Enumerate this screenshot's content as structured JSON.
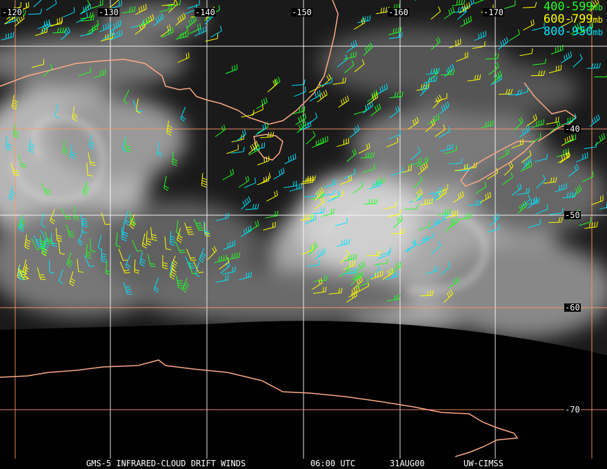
{
  "legend": [
    {
      "label": "400-599",
      "unit": "mb",
      "color": "#22ff22"
    },
    {
      "label": "600-799",
      "unit": "mb",
      "color": "#ffff00"
    },
    {
      "label": "800-950",
      "unit": "mb",
      "color": "#00e5ff"
    }
  ],
  "longitude_labels": [
    "-120",
    "-130",
    "-140",
    "-150",
    "-160",
    "-170"
  ],
  "latitude_labels": [
    "-40",
    "-50",
    "-60",
    "-70"
  ],
  "caption": {
    "product": "GMS-5 INFRARED-CLOUD DRIFT WINDS",
    "time": "06:00 UTC",
    "date": "31AUG00",
    "source": "UW-CIMSS"
  },
  "colors": {
    "coastline": "#ffaa88",
    "grid_white": "#ffffff",
    "grid_orange": "#ff9966",
    "background": "#000000"
  }
}
